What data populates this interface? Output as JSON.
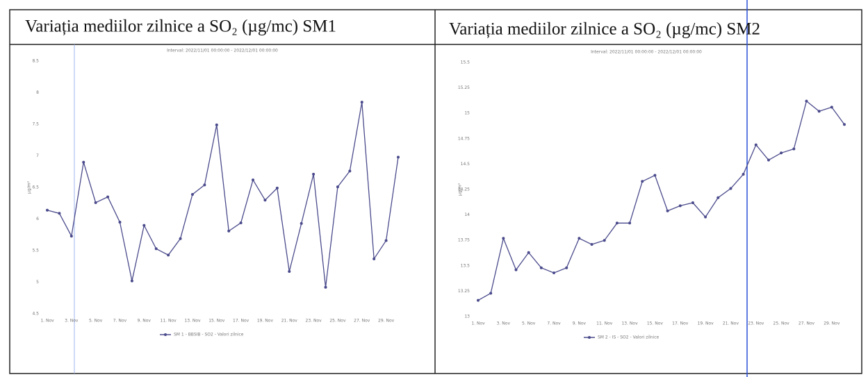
{
  "chart_data": [
    {
      "type": "line",
      "title": "Variația mediilor zilnice a SO₂ (µg/mc) SM1",
      "subtitle": "Interval: 2022/11/01 00:00:00 - 2022/12/01 00:00:00",
      "y_label": "µg/m³",
      "categories": [
        "1. Nov",
        null,
        "3. Nov",
        null,
        "5. Nov",
        null,
        "7. Nov",
        null,
        "9. Nov",
        null,
        "11. Nov",
        null,
        "13. Nov",
        null,
        "15. Nov",
        null,
        "17. Nov",
        null,
        "19. Nov",
        null,
        "21. Nov",
        null,
        "23. Nov",
        null,
        "25. Nov",
        null,
        "27. Nov",
        null,
        "29. Nov",
        null
      ],
      "series": [
        {
          "name": "SM 1 - BBSIB - SO2 - Valori zilnice",
          "color": "#4a4a8c",
          "values": [
            6.14,
            6.09,
            5.73,
            6.9,
            6.26,
            6.35,
            5.95,
            5.02,
            5.9,
            5.53,
            5.43,
            5.69,
            6.39,
            6.54,
            7.49,
            5.81,
            5.94,
            6.62,
            6.3,
            6.49,
            5.17,
            5.93,
            6.71,
            4.92,
            6.51,
            6.76,
            7.85,
            5.37,
            5.66,
            6.98
          ]
        }
      ],
      "ylim": [
        4.5,
        8.5
      ],
      "yticks": [
        4.5,
        5,
        5.5,
        6,
        6.5,
        7,
        7.5,
        8,
        8.5
      ],
      "grid": false,
      "legend": "bottom"
    },
    {
      "type": "line",
      "title": "Variația mediilor zilnice a SO₂ (µg/mc) SM2",
      "subtitle": "Interval: 2022/11/01 00:00:00 - 2022/12/01 00:00:00",
      "y_label": "µg/m³",
      "categories": [
        "1. Nov",
        null,
        "3. Nov",
        null,
        "5. Nov",
        null,
        "7. Nov",
        null,
        "9. Nov",
        null,
        "11. Nov",
        null,
        "13. Nov",
        null,
        "15. Nov",
        null,
        "17. Nov",
        null,
        "19. Nov",
        null,
        "21. Nov",
        null,
        "23. Nov",
        null,
        "25. Nov",
        null,
        "27. Nov",
        null,
        "29. Nov",
        null
      ],
      "series": [
        {
          "name": "SM 2 - IS - SO2 - Valori zilnice",
          "color": "#4a4a8c",
          "values": [
            13.16,
            13.23,
            13.77,
            13.46,
            13.63,
            13.48,
            13.43,
            13.48,
            13.77,
            13.71,
            13.75,
            13.92,
            13.92,
            14.33,
            14.39,
            14.04,
            14.09,
            14.12,
            13.98,
            14.17,
            14.26,
            14.4,
            14.69,
            14.54,
            14.61,
            14.65,
            15.12,
            15.02,
            15.06,
            14.89
          ]
        }
      ],
      "ylim": [
        13,
        15.5
      ],
      "yticks": [
        13,
        13.25,
        13.5,
        13.75,
        14,
        14.25,
        14.5,
        14.75,
        15,
        15.25,
        15.5
      ],
      "grid": false,
      "legend": "bottom"
    }
  ]
}
